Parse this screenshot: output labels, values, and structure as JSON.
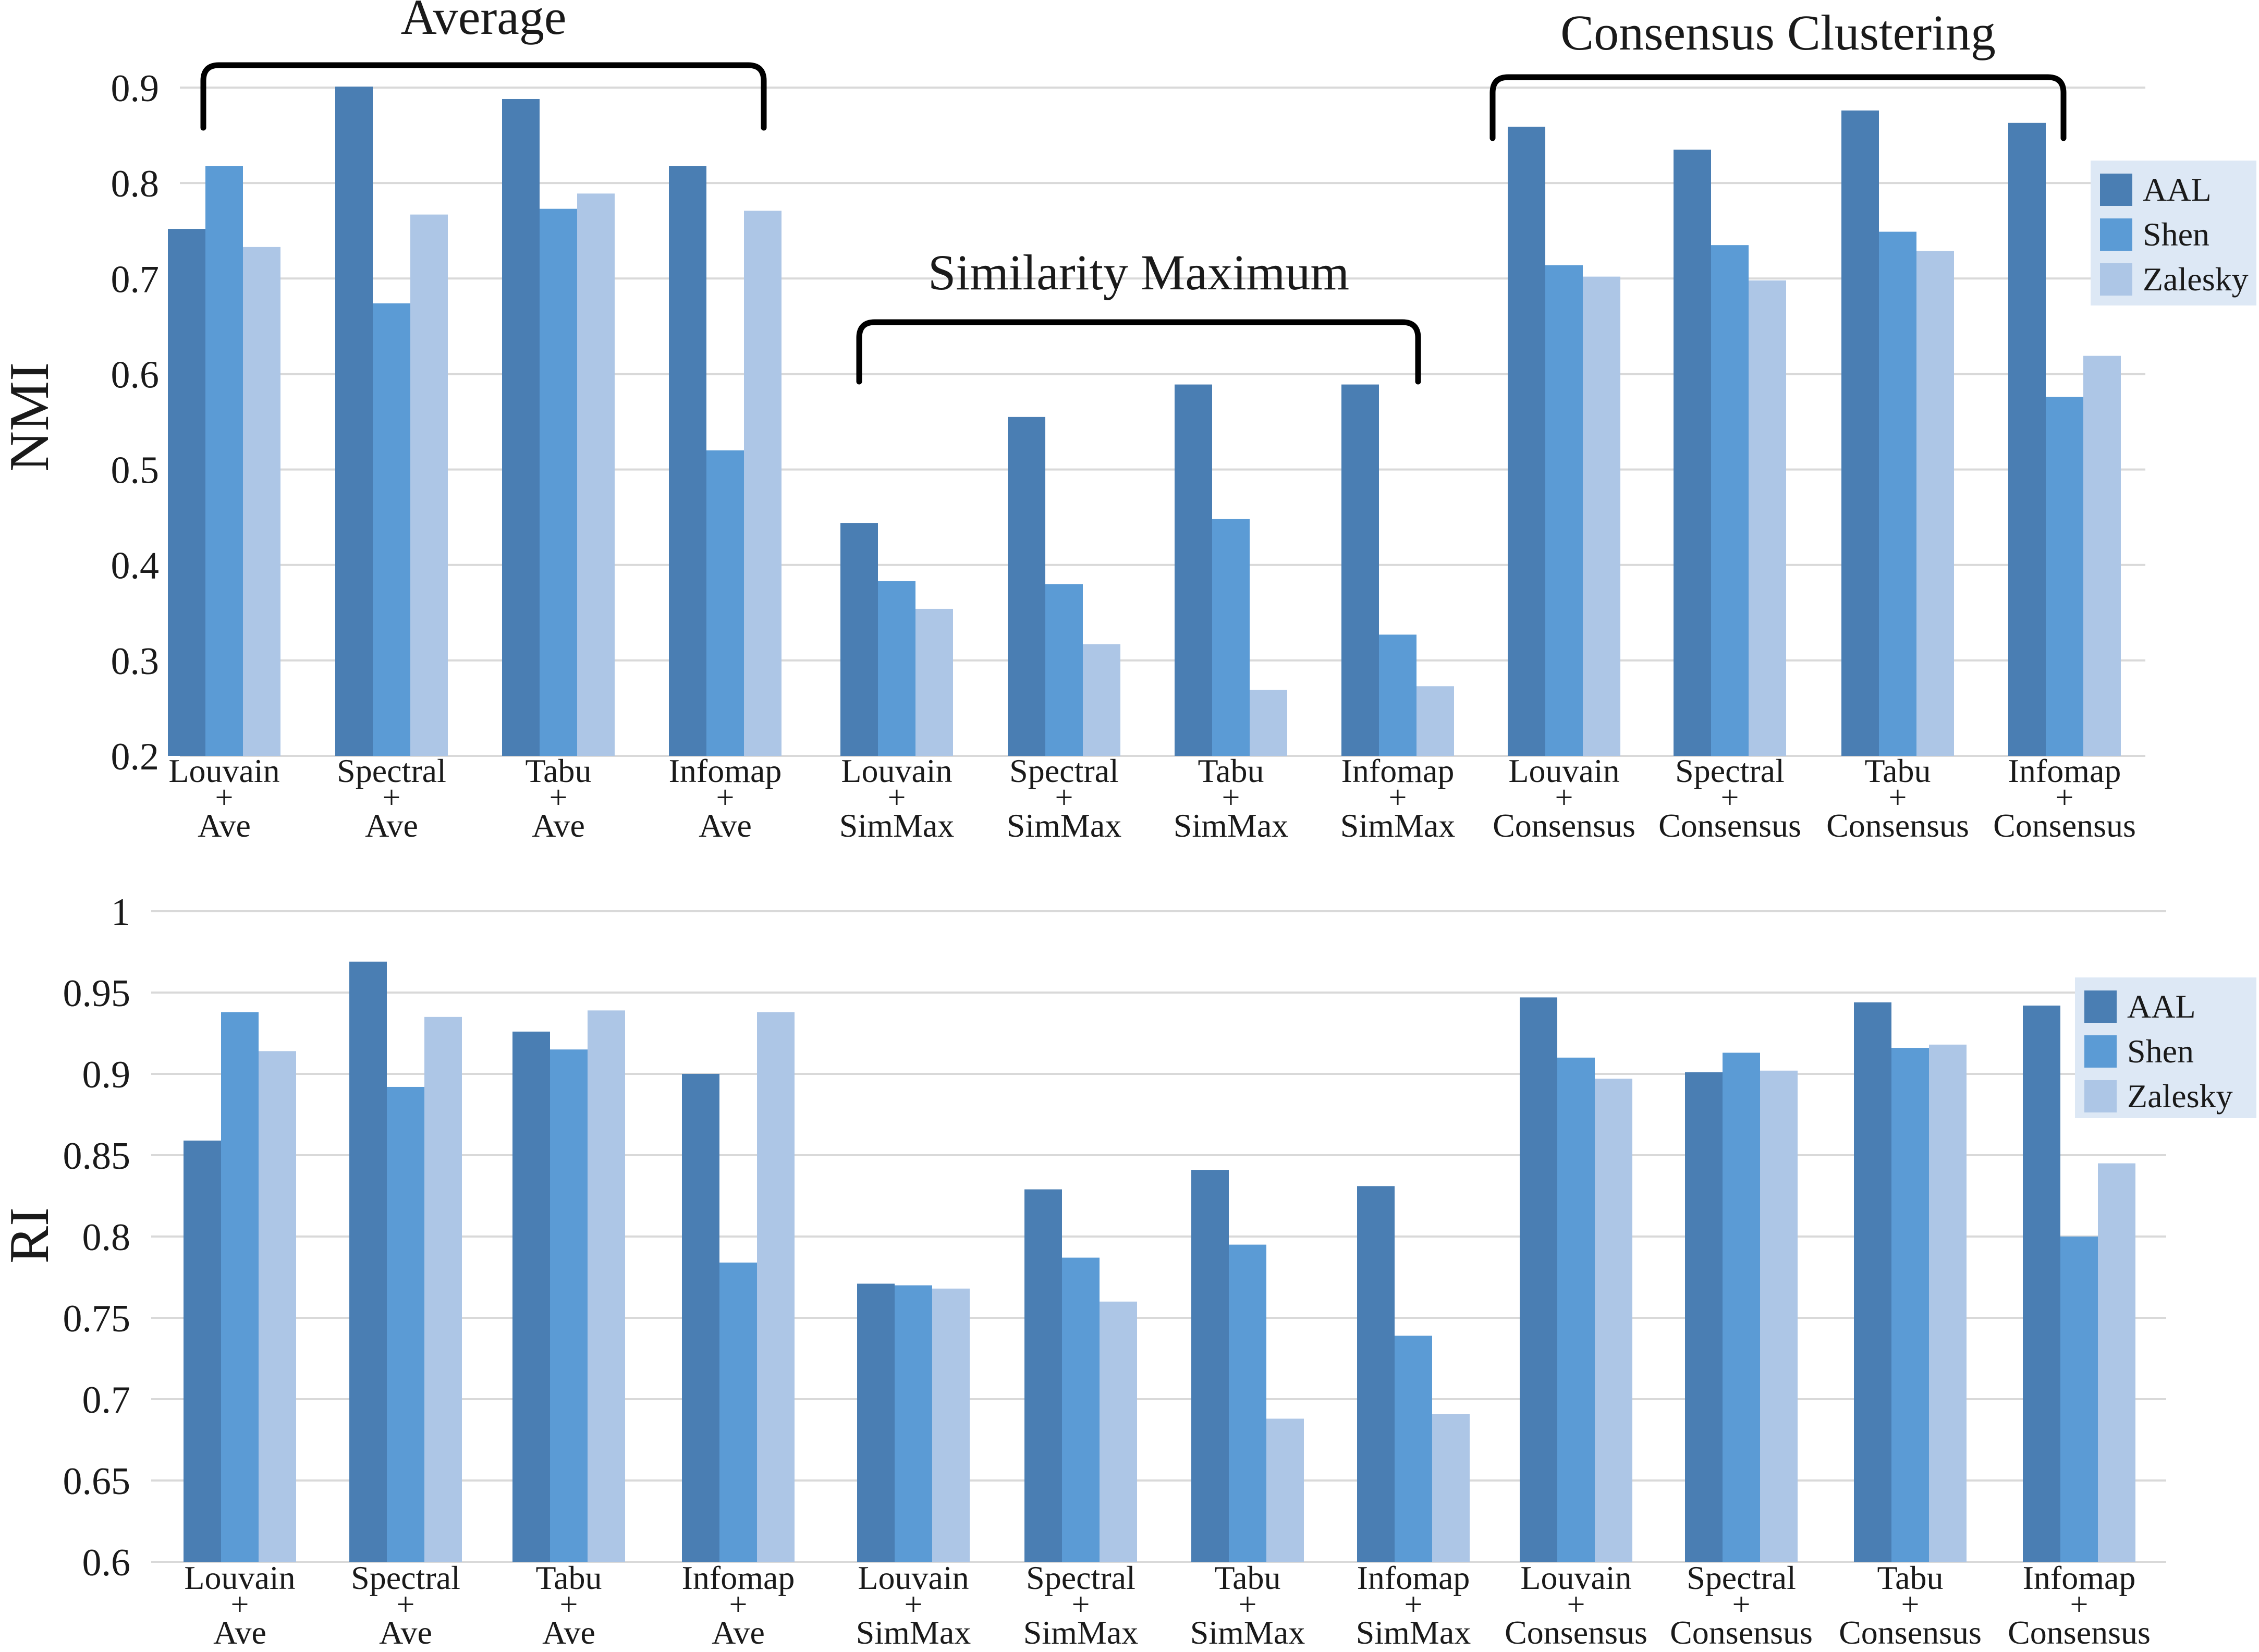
{
  "colors": {
    "AAL": "#4a7eb3",
    "Shen": "#5b9bd5",
    "Zalesky": "#adc6e6",
    "legend_bg": "#dde8f5"
  },
  "chart_data": [
    {
      "type": "bar",
      "title": "",
      "ylabel": "NMI",
      "xlabel": "",
      "ylim": [
        0.2,
        0.9
      ],
      "yticks": [
        "0.2",
        "0.3",
        "0.4",
        "0.5",
        "0.6",
        "0.7",
        "0.8",
        "0.9"
      ],
      "grid": true,
      "legend_position": "right",
      "categories": [
        [
          "Louvain",
          "+",
          "Ave"
        ],
        [
          "Spectral",
          "+",
          "Ave"
        ],
        [
          "Tabu",
          "+",
          "Ave"
        ],
        [
          "Infomap",
          "+",
          "Ave"
        ],
        [
          "Louvain",
          "+",
          "SimMax"
        ],
        [
          "Spectral",
          "+",
          "SimMax"
        ],
        [
          "Tabu",
          "+",
          "SimMax"
        ],
        [
          "Infomap",
          "+",
          "SimMax"
        ],
        [
          "Louvain",
          "+",
          "Consensus"
        ],
        [
          "Spectral",
          "+",
          "Consensus"
        ],
        [
          "Tabu",
          "+",
          "Consensus"
        ],
        [
          "Infomap",
          "+",
          "Consensus"
        ]
      ],
      "series": [
        {
          "name": "AAL",
          "values": [
            0.752,
            0.901,
            0.888,
            0.818,
            0.444,
            0.555,
            0.589,
            0.589,
            0.859,
            0.835,
            0.876,
            0.863
          ]
        },
        {
          "name": "Shen",
          "values": [
            0.818,
            0.674,
            0.773,
            0.52,
            0.383,
            0.38,
            0.448,
            0.327,
            0.714,
            0.735,
            0.749,
            0.576
          ]
        },
        {
          "name": "Zalesky",
          "values": [
            0.733,
            0.767,
            0.789,
            0.771,
            0.354,
            0.317,
            0.269,
            0.273,
            0.702,
            0.698,
            0.729,
            0.619
          ]
        }
      ],
      "annotations": [
        {
          "label": "Average",
          "from": 0,
          "to": 3
        },
        {
          "label": "Similarity Maximum",
          "from": 4,
          "to": 7
        },
        {
          "label": "Consensus Clustering",
          "from": 8,
          "to": 11
        }
      ]
    },
    {
      "type": "bar",
      "title": "",
      "ylabel": "RI",
      "xlabel": "",
      "ylim": [
        0.6,
        1.0
      ],
      "yticks": [
        "0.6",
        "0.65",
        "0.7",
        "0.75",
        "0.8",
        "0.85",
        "0.9",
        "0.95",
        "1"
      ],
      "grid": true,
      "legend_position": "right",
      "categories": [
        [
          "Louvain",
          "+",
          "Ave"
        ],
        [
          "Spectral",
          "+",
          "Ave"
        ],
        [
          "Tabu",
          "+",
          "Ave"
        ],
        [
          "Infomap",
          "+",
          "Ave"
        ],
        [
          "Louvain",
          "+",
          "SimMax"
        ],
        [
          "Spectral",
          "+",
          "SimMax"
        ],
        [
          "Tabu",
          "+",
          "SimMax"
        ],
        [
          "Infomap",
          "+",
          "SimMax"
        ],
        [
          "Louvain",
          "+",
          "Consensus"
        ],
        [
          "Spectral",
          "+",
          "Consensus"
        ],
        [
          "Tabu",
          "+",
          "Consensus"
        ],
        [
          "Infomap",
          "+",
          "Consensus"
        ]
      ],
      "series": [
        {
          "name": "AAL",
          "values": [
            0.859,
            0.969,
            0.926,
            0.9,
            0.771,
            0.829,
            0.841,
            0.831,
            0.947,
            0.901,
            0.944,
            0.942
          ]
        },
        {
          "name": "Shen",
          "values": [
            0.938,
            0.892,
            0.915,
            0.784,
            0.77,
            0.787,
            0.795,
            0.739,
            0.91,
            0.913,
            0.916,
            0.8
          ]
        },
        {
          "name": "Zalesky",
          "values": [
            0.914,
            0.935,
            0.939,
            0.938,
            0.768,
            0.76,
            0.688,
            0.691,
            0.897,
            0.902,
            0.918,
            0.845
          ]
        }
      ],
      "annotations": []
    }
  ]
}
